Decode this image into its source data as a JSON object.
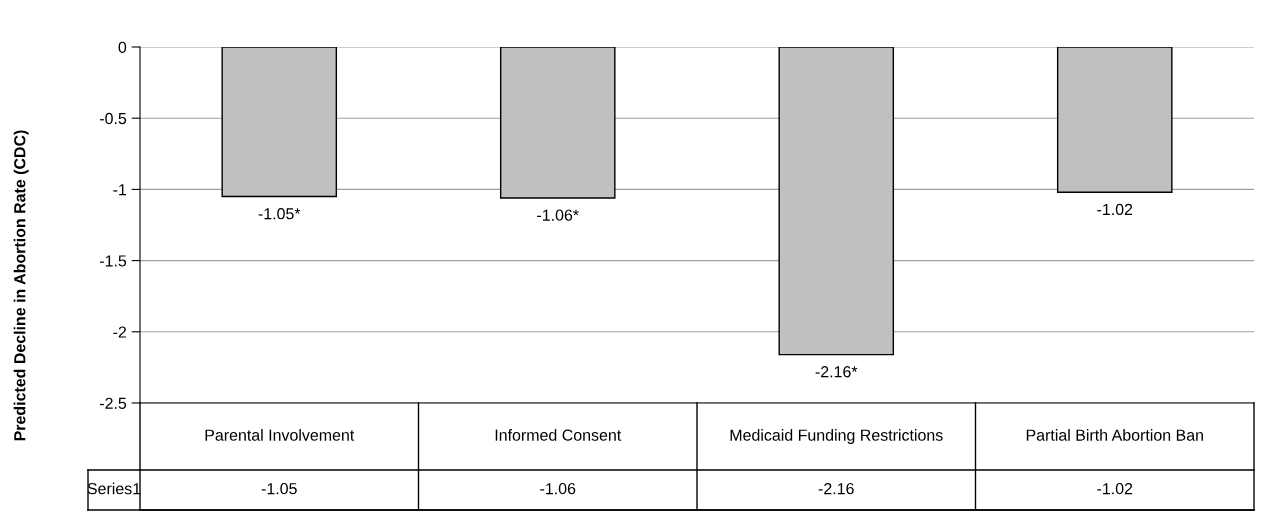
{
  "chart_data": {
    "type": "bar",
    "ylabel": "Predicted Decline in Abortion Rate (CDC)",
    "categories": [
      "Parental Involvement",
      "Informed Consent",
      "Medicaid Funding Restrictions",
      "Partial Birth Abortion Ban"
    ],
    "series": [
      {
        "name": "Series1",
        "color": "#c0c0c0",
        "values": [
          -1.05,
          -1.06,
          -2.16,
          -1.02
        ],
        "value_labels": [
          "-1.05",
          "-1.06",
          "-2.16",
          "-1.02"
        ]
      }
    ],
    "annotations": [
      {
        "text": "-1.05*",
        "x": "Parental Involvement",
        "y": -1.05
      },
      {
        "text": "-1.06*",
        "x": "Informed Consent",
        "y": -1.06
      },
      {
        "text": "-2.16*",
        "x": "Medicaid Funding Restrictions",
        "y": -2.16
      },
      {
        "text": "-1.02",
        "x": "Partial Birth Abortion Ban",
        "y": -1.02
      }
    ],
    "ylim": [
      -2.5,
      0
    ],
    "yticks": [
      0,
      -0.5,
      -1,
      -1.5,
      -2,
      -2.5
    ],
    "grid": "y",
    "legend": "bottom left"
  }
}
